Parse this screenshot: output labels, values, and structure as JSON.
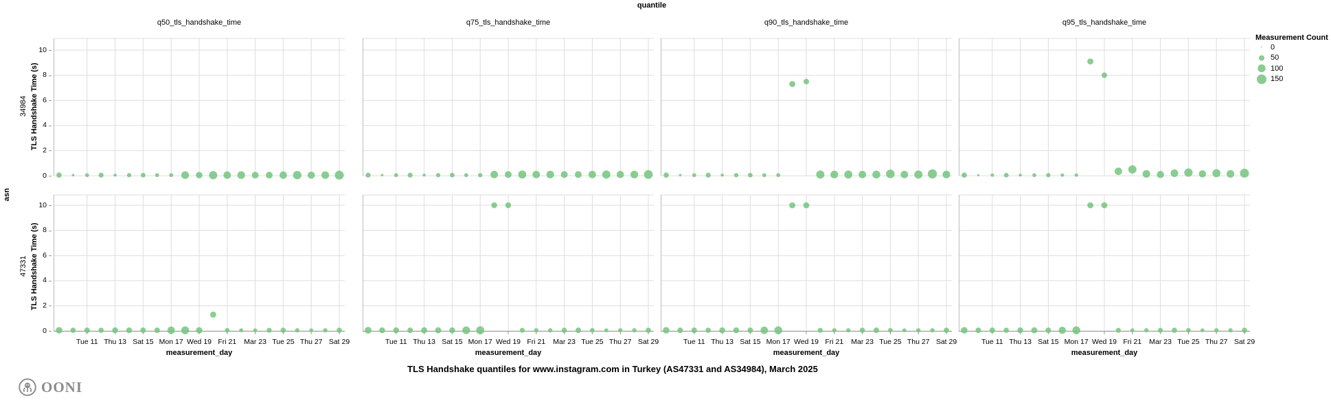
{
  "header": {
    "facet_column_label": "quantile",
    "facet_row_label": "asn"
  },
  "legend": {
    "title": "Measurement Count",
    "items": [
      "0",
      "50",
      "100",
      "150"
    ],
    "item_values": [
      0,
      50,
      100,
      150
    ]
  },
  "footer": {
    "title": "TLS Handshake quantiles for www.instagram.com in Turkey (AS47331 and AS34984), March 2025",
    "brand": "OONI"
  },
  "colors": {
    "dot": "#74c47e",
    "grid": "#dddddd",
    "axis": "#bbbbbb",
    "domain": "#999999",
    "text": "#000000",
    "brand_gray": "#8b8b8b"
  },
  "chart_data": {
    "type": "scatter",
    "title": "TLS Handshake quantiles for www.instagram.com in Turkey (AS47331 and AS34984), March 2025",
    "facet": {
      "column": "quantile",
      "row": "asn"
    },
    "columns": [
      "q50_tls_handshake_time",
      "q75_tls_handshake_time",
      "q90_tls_handshake_time",
      "q95_tls_handshake_time"
    ],
    "rows": [
      "34984",
      "47331"
    ],
    "xlabel": "measurement_day",
    "ylabel": "TLS Handshake Time (s)",
    "ylim": [
      0,
      10
    ],
    "y_ticks": [
      0,
      2,
      4,
      6,
      8,
      10
    ],
    "x_ticks": [
      {
        "day": 11,
        "label": "Tue 11"
      },
      {
        "day": 13,
        "label": "Thu 13"
      },
      {
        "day": 15,
        "label": "Sat 15"
      },
      {
        "day": 17,
        "label": "Mon 17"
      },
      {
        "day": 19,
        "label": "Wed 19"
      },
      {
        "day": 21,
        "label": "Fri 21"
      },
      {
        "day": 23,
        "label": "Mar 23"
      },
      {
        "day": 25,
        "label": "Tue 25"
      },
      {
        "day": 27,
        "label": "Thu 27"
      },
      {
        "day": 29,
        "label": "Sat 29"
      }
    ],
    "size_scale": {
      "title": "Measurement Count",
      "domain": [
        0,
        150
      ],
      "max_radius": 7
    },
    "panels": [
      {
        "row": "34984",
        "col": "q50_tls_handshake_time",
        "points": [
          [
            9,
            0.05,
            45
          ],
          [
            10,
            0.05,
            10
          ],
          [
            11,
            0.05,
            25
          ],
          [
            12,
            0.05,
            40
          ],
          [
            13,
            0.05,
            15
          ],
          [
            14,
            0.05,
            30
          ],
          [
            15,
            0.05,
            35
          ],
          [
            16,
            0.05,
            25
          ],
          [
            17,
            0.05,
            25
          ],
          [
            18,
            0.05,
            95
          ],
          [
            19,
            0.05,
            70
          ],
          [
            20,
            0.05,
            110
          ],
          [
            21,
            0.05,
            90
          ],
          [
            22,
            0.05,
            95
          ],
          [
            23,
            0.05,
            75
          ],
          [
            24,
            0.05,
            75
          ],
          [
            25,
            0.05,
            90
          ],
          [
            26,
            0.05,
            115
          ],
          [
            27,
            0.05,
            85
          ],
          [
            28,
            0.05,
            95
          ],
          [
            29,
            0.05,
            130
          ]
        ]
      },
      {
        "row": "34984",
        "col": "q75_tls_handshake_time",
        "points": [
          [
            9,
            0.05,
            40
          ],
          [
            10,
            0.05,
            10
          ],
          [
            11,
            0.05,
            25
          ],
          [
            12,
            0.05,
            40
          ],
          [
            13,
            0.05,
            15
          ],
          [
            14,
            0.05,
            30
          ],
          [
            15,
            0.05,
            35
          ],
          [
            16,
            0.05,
            25
          ],
          [
            17,
            0.05,
            30
          ],
          [
            18,
            0.1,
            90
          ],
          [
            19,
            0.1,
            75
          ],
          [
            20,
            0.1,
            105
          ],
          [
            21,
            0.1,
            90
          ],
          [
            22,
            0.1,
            95
          ],
          [
            23,
            0.1,
            75
          ],
          [
            24,
            0.1,
            75
          ],
          [
            25,
            0.1,
            90
          ],
          [
            26,
            0.1,
            110
          ],
          [
            27,
            0.1,
            85
          ],
          [
            28,
            0.1,
            95
          ],
          [
            29,
            0.1,
            125
          ]
        ]
      },
      {
        "row": "34984",
        "col": "q90_tls_handshake_time",
        "points": [
          [
            9,
            0.05,
            45
          ],
          [
            10,
            0.05,
            10
          ],
          [
            11,
            0.05,
            25
          ],
          [
            12,
            0.05,
            40
          ],
          [
            13,
            0.05,
            15
          ],
          [
            14,
            0.05,
            30
          ],
          [
            15,
            0.05,
            35
          ],
          [
            16,
            0.05,
            25
          ],
          [
            17,
            0.05,
            25
          ],
          [
            18,
            7.3,
            60
          ],
          [
            19,
            7.5,
            50
          ],
          [
            20,
            0.1,
            110
          ],
          [
            21,
            0.1,
            95
          ],
          [
            22,
            0.1,
            105
          ],
          [
            23,
            0.1,
            90
          ],
          [
            24,
            0.1,
            100
          ],
          [
            25,
            0.15,
            120
          ],
          [
            26,
            0.1,
            90
          ],
          [
            27,
            0.1,
            110
          ],
          [
            28,
            0.15,
            135
          ],
          [
            29,
            0.1,
            95
          ]
        ]
      },
      {
        "row": "34984",
        "col": "q95_tls_handshake_time",
        "points": [
          [
            9,
            0.05,
            45
          ],
          [
            10,
            0.05,
            8
          ],
          [
            11,
            0.05,
            20
          ],
          [
            12,
            0.05,
            35
          ],
          [
            13,
            0.05,
            15
          ],
          [
            14,
            0.05,
            25
          ],
          [
            15,
            0.05,
            30
          ],
          [
            16,
            0.05,
            20
          ],
          [
            17,
            0.05,
            20
          ],
          [
            18,
            9.1,
            60
          ],
          [
            19,
            8.0,
            50
          ],
          [
            20,
            0.35,
            90
          ],
          [
            21,
            0.5,
            110
          ],
          [
            22,
            0.15,
            95
          ],
          [
            23,
            0.1,
            85
          ],
          [
            24,
            0.2,
            95
          ],
          [
            25,
            0.25,
            115
          ],
          [
            26,
            0.15,
            85
          ],
          [
            27,
            0.2,
            105
          ],
          [
            28,
            0.15,
            95
          ],
          [
            29,
            0.2,
            130
          ]
        ]
      },
      {
        "row": "47331",
        "col": "q50_tls_handshake_time",
        "points": [
          [
            9,
            0.05,
            70
          ],
          [
            10,
            0.05,
            45
          ],
          [
            11,
            0.05,
            50
          ],
          [
            12,
            0.05,
            45
          ],
          [
            13,
            0.05,
            55
          ],
          [
            14,
            0.05,
            55
          ],
          [
            15,
            0.05,
            50
          ],
          [
            16,
            0.05,
            50
          ],
          [
            17,
            0.05,
            90
          ],
          [
            18,
            0.05,
            100
          ],
          [
            19,
            0.05,
            65
          ],
          [
            20,
            1.3,
            60
          ],
          [
            21,
            0.05,
            35
          ],
          [
            22,
            0.05,
            25
          ],
          [
            23,
            0.05,
            25
          ],
          [
            24,
            0.05,
            40
          ],
          [
            25,
            0.05,
            45
          ],
          [
            26,
            0.05,
            30
          ],
          [
            27,
            0.05,
            25
          ],
          [
            28,
            0.05,
            30
          ],
          [
            29,
            0.05,
            45
          ]
        ]
      },
      {
        "row": "47331",
        "col": "q75_tls_handshake_time",
        "points": [
          [
            9,
            0.05,
            75
          ],
          [
            10,
            0.05,
            55
          ],
          [
            11,
            0.05,
            55
          ],
          [
            12,
            0.05,
            50
          ],
          [
            13,
            0.05,
            60
          ],
          [
            14,
            0.05,
            60
          ],
          [
            15,
            0.05,
            55
          ],
          [
            16,
            0.05,
            95
          ],
          [
            17,
            0.05,
            105
          ],
          [
            18,
            10,
            55
          ],
          [
            19,
            10,
            55
          ],
          [
            20,
            0.05,
            40
          ],
          [
            21,
            0.05,
            30
          ],
          [
            22,
            0.05,
            30
          ],
          [
            23,
            0.05,
            45
          ],
          [
            24,
            0.05,
            50
          ],
          [
            25,
            0.05,
            35
          ],
          [
            26,
            0.05,
            25
          ],
          [
            27,
            0.05,
            30
          ],
          [
            28,
            0.05,
            30
          ],
          [
            29,
            0.05,
            45
          ]
        ]
      },
      {
        "row": "47331",
        "col": "q90_tls_handshake_time",
        "points": [
          [
            9,
            0.05,
            70
          ],
          [
            10,
            0.05,
            50
          ],
          [
            11,
            0.05,
            50
          ],
          [
            12,
            0.05,
            45
          ],
          [
            13,
            0.05,
            55
          ],
          [
            14,
            0.05,
            55
          ],
          [
            15,
            0.05,
            50
          ],
          [
            16,
            0.05,
            90
          ],
          [
            17,
            0.05,
            100
          ],
          [
            18,
            10,
            60
          ],
          [
            19,
            10,
            60
          ],
          [
            20,
            0.05,
            40
          ],
          [
            21,
            0.05,
            30
          ],
          [
            22,
            0.05,
            30
          ],
          [
            23,
            0.05,
            45
          ],
          [
            24,
            0.05,
            50
          ],
          [
            25,
            0.05,
            35
          ],
          [
            26,
            0.05,
            25
          ],
          [
            27,
            0.05,
            30
          ],
          [
            28,
            0.05,
            30
          ],
          [
            29,
            0.05,
            45
          ]
        ]
      },
      {
        "row": "47331",
        "col": "q95_tls_handshake_time",
        "points": [
          [
            9,
            0.05,
            70
          ],
          [
            10,
            0.05,
            50
          ],
          [
            11,
            0.05,
            50
          ],
          [
            12,
            0.05,
            45
          ],
          [
            13,
            0.05,
            55
          ],
          [
            14,
            0.05,
            60
          ],
          [
            15,
            0.05,
            50
          ],
          [
            16,
            0.05,
            85
          ],
          [
            17,
            0.05,
            100
          ],
          [
            18,
            10,
            60
          ],
          [
            19,
            10,
            60
          ],
          [
            20,
            0.05,
            40
          ],
          [
            21,
            0.05,
            25
          ],
          [
            22,
            0.05,
            30
          ],
          [
            23,
            0.05,
            40
          ],
          [
            24,
            0.05,
            45
          ],
          [
            25,
            0.05,
            35
          ],
          [
            26,
            0.05,
            25
          ],
          [
            27,
            0.05,
            30
          ],
          [
            28,
            0.05,
            30
          ],
          [
            29,
            0.05,
            45
          ]
        ]
      }
    ]
  }
}
